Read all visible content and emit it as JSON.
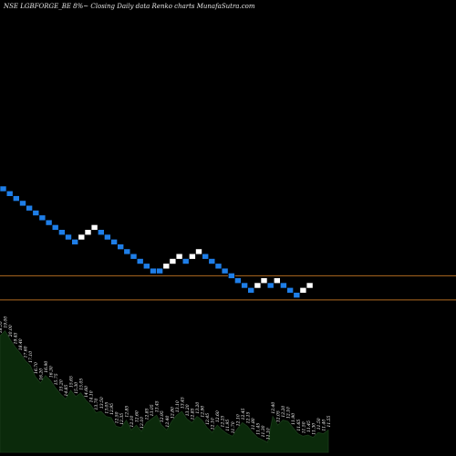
{
  "chart_data": {
    "type": "renko",
    "title": "NSE LGBFORGE_BE 8%~  Closing Daily data  Renko  charts MunafaSutra.com",
    "colors": {
      "background": "#000000",
      "up_brick": "#ffffff",
      "down_brick": "#1e7ee8",
      "reference_line": "#b06a20",
      "volume_fill": "#0b2a0b",
      "volume_stroke": "#1b3d1b"
    },
    "bricks": [
      {
        "dir": "down",
        "level": 0
      },
      {
        "dir": "down",
        "level": 1
      },
      {
        "dir": "down",
        "level": 2
      },
      {
        "dir": "down",
        "level": 3
      },
      {
        "dir": "down",
        "level": 4
      },
      {
        "dir": "down",
        "level": 5
      },
      {
        "dir": "down",
        "level": 6
      },
      {
        "dir": "down",
        "level": 7
      },
      {
        "dir": "down",
        "level": 8
      },
      {
        "dir": "down",
        "level": 9
      },
      {
        "dir": "down",
        "level": 10
      },
      {
        "dir": "down",
        "level": 11
      },
      {
        "dir": "up",
        "level": 10
      },
      {
        "dir": "up",
        "level": 9
      },
      {
        "dir": "up",
        "level": 8
      },
      {
        "dir": "down",
        "level": 9
      },
      {
        "dir": "down",
        "level": 10
      },
      {
        "dir": "down",
        "level": 11
      },
      {
        "dir": "down",
        "level": 12
      },
      {
        "dir": "down",
        "level": 13
      },
      {
        "dir": "down",
        "level": 14
      },
      {
        "dir": "down",
        "level": 15
      },
      {
        "dir": "down",
        "level": 16
      },
      {
        "dir": "down",
        "level": 17
      },
      {
        "dir": "down",
        "level": 17
      },
      {
        "dir": "up",
        "level": 16
      },
      {
        "dir": "up",
        "level": 15
      },
      {
        "dir": "up",
        "level": 14
      },
      {
        "dir": "down",
        "level": 15
      },
      {
        "dir": "up",
        "level": 14
      },
      {
        "dir": "up",
        "level": 13
      },
      {
        "dir": "down",
        "level": 14
      },
      {
        "dir": "down",
        "level": 15
      },
      {
        "dir": "down",
        "level": 16
      },
      {
        "dir": "down",
        "level": 17
      },
      {
        "dir": "down",
        "level": 18
      },
      {
        "dir": "down",
        "level": 19
      },
      {
        "dir": "down",
        "level": 20
      },
      {
        "dir": "down",
        "level": 21
      },
      {
        "dir": "up",
        "level": 20
      },
      {
        "dir": "up",
        "level": 19
      },
      {
        "dir": "down",
        "level": 20
      },
      {
        "dir": "up",
        "level": 19
      },
      {
        "dir": "down",
        "level": 20
      },
      {
        "dir": "down",
        "level": 21
      },
      {
        "dir": "down",
        "level": 22
      },
      {
        "dir": "up",
        "level": 21
      },
      {
        "dir": "up",
        "level": 20
      }
    ],
    "reference_lines": [
      18,
      23
    ],
    "volume": {
      "levels": [
        0.94,
        0.98,
        0.91,
        0.85,
        0.8,
        0.74,
        0.7,
        0.61,
        0.56,
        0.62,
        0.58,
        0.52,
        0.47,
        0.43,
        0.5,
        0.45,
        0.48,
        0.42,
        0.38,
        0.32,
        0.33,
        0.29,
        0.28,
        0.21,
        0.2,
        0.26,
        0.18,
        0.22,
        0.17,
        0.24,
        0.27,
        0.3,
        0.22,
        0.18,
        0.25,
        0.3,
        0.33,
        0.27,
        0.24,
        0.29,
        0.26,
        0.2,
        0.16,
        0.22,
        0.18,
        0.15,
        0.13,
        0.19,
        0.24,
        0.21,
        0.16,
        0.12,
        0.1,
        0.08,
        0.29,
        0.22,
        0.26,
        0.25,
        0.2,
        0.15,
        0.13,
        0.14,
        0.12,
        0.16,
        0.15,
        0.18
      ],
      "labels": [
        "18.55",
        "19.00",
        "20.00",
        "19.45",
        "18.40",
        "17.60",
        "17.10",
        "16.70",
        "16.20",
        "16.90",
        "16.30",
        "15.75",
        "15.20",
        "14.85",
        "15.65",
        "15.30",
        "15.05",
        "14.60",
        "14.10",
        "13.70",
        "13.50",
        "13.05",
        "12.95",
        "12.50",
        "12.35",
        "12.85",
        "12.10",
        "12.60",
        "12.10",
        "12.85",
        "13.05",
        "13.45",
        "12.95",
        "12.40",
        "12.80",
        "13.10",
        "13.45",
        "13.20",
        "12.85",
        "13.20",
        "12.90",
        "12.45",
        "12.10",
        "12.60",
        "12.25",
        "11.95",
        "11.70",
        "12.10",
        "12.45",
        "12.15",
        "11.80",
        "11.45",
        "11.30",
        "11.10",
        "12.40",
        "12.05",
        "12.20",
        "12.10",
        "11.90",
        "11.65",
        "11.50",
        "11.45",
        "11.30",
        "11.50",
        "11.40",
        "11.55"
      ]
    }
  }
}
